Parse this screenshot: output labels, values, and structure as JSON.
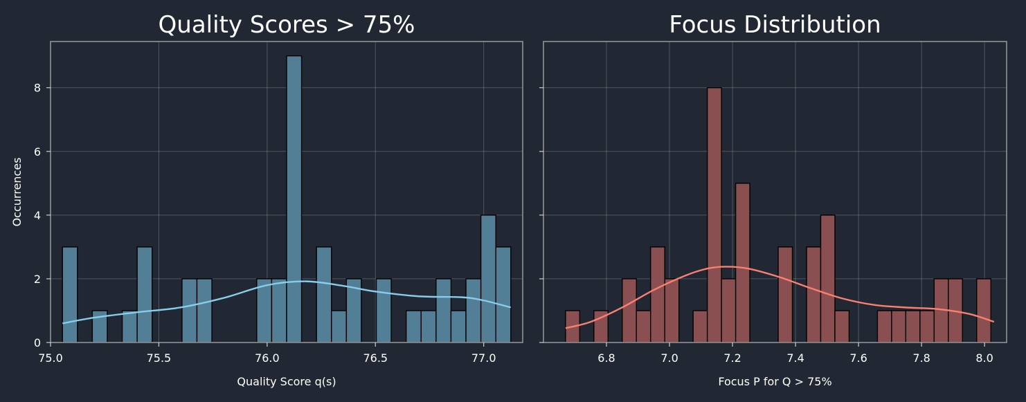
{
  "chart_data": [
    {
      "type": "histogram",
      "title": "Quality Scores > 75%",
      "xlabel": "Quality Score q(s)",
      "ylabel": "Occurrences",
      "color": "#87CEEB",
      "bar_color": "#527e96",
      "xlim": [
        75.0,
        77.18
      ],
      "ylim": [
        0,
        9.45
      ],
      "xticks": [
        "75.0",
        "75.5",
        "76.0",
        "76.5",
        "77.0"
      ],
      "xtick_values": [
        75.0,
        75.5,
        76.0,
        76.5,
        77.0
      ],
      "yticks": [
        "0",
        "2",
        "4",
        "6",
        "8"
      ],
      "ytick_values": [
        0,
        2,
        4,
        6,
        8
      ],
      "grid": true,
      "bins": [
        {
          "x0": 75.055,
          "x1": 75.124,
          "count": 3
        },
        {
          "x0": 75.124,
          "x1": 75.193,
          "count": 0
        },
        {
          "x0": 75.193,
          "x1": 75.262,
          "count": 1
        },
        {
          "x0": 75.262,
          "x1": 75.331,
          "count": 0
        },
        {
          "x0": 75.331,
          "x1": 75.4,
          "count": 1
        },
        {
          "x0": 75.4,
          "x1": 75.469,
          "count": 3
        },
        {
          "x0": 75.469,
          "x1": 75.538,
          "count": 0
        },
        {
          "x0": 75.538,
          "x1": 75.607,
          "count": 0
        },
        {
          "x0": 75.607,
          "x1": 75.676,
          "count": 2
        },
        {
          "x0": 75.676,
          "x1": 75.745,
          "count": 2
        },
        {
          "x0": 75.745,
          "x1": 75.814,
          "count": 0
        },
        {
          "x0": 75.814,
          "x1": 75.883,
          "count": 0
        },
        {
          "x0": 75.883,
          "x1": 75.952,
          "count": 0
        },
        {
          "x0": 75.952,
          "x1": 76.021,
          "count": 2
        },
        {
          "x0": 76.021,
          "x1": 76.09,
          "count": 2
        },
        {
          "x0": 76.09,
          "x1": 76.159,
          "count": 9
        },
        {
          "x0": 76.159,
          "x1": 76.228,
          "count": 0
        },
        {
          "x0": 76.228,
          "x1": 76.297,
          "count": 3
        },
        {
          "x0": 76.297,
          "x1": 76.366,
          "count": 1
        },
        {
          "x0": 76.366,
          "x1": 76.435,
          "count": 2
        },
        {
          "x0": 76.435,
          "x1": 76.504,
          "count": 0
        },
        {
          "x0": 76.504,
          "x1": 76.573,
          "count": 2
        },
        {
          "x0": 76.573,
          "x1": 76.642,
          "count": 0
        },
        {
          "x0": 76.642,
          "x1": 76.711,
          "count": 1
        },
        {
          "x0": 76.711,
          "x1": 76.78,
          "count": 1
        },
        {
          "x0": 76.78,
          "x1": 76.849,
          "count": 2
        },
        {
          "x0": 76.849,
          "x1": 76.918,
          "count": 1
        },
        {
          "x0": 76.918,
          "x1": 76.987,
          "count": 2
        },
        {
          "x0": 76.987,
          "x1": 77.056,
          "count": 4
        },
        {
          "x0": 77.056,
          "x1": 77.125,
          "count": 3
        }
      ],
      "kde": {
        "x": [
          75.055,
          75.2,
          75.4,
          75.6,
          75.8,
          76.0,
          76.18,
          76.35,
          76.5,
          76.7,
          76.9,
          77.0,
          77.125
        ],
        "y": [
          0.6,
          0.78,
          0.95,
          1.1,
          1.4,
          1.8,
          1.92,
          1.78,
          1.6,
          1.45,
          1.42,
          1.32,
          1.1
        ]
      }
    },
    {
      "type": "histogram",
      "title": "Focus Distribution",
      "xlabel": "Focus P for Q > 75%",
      "ylabel": "",
      "color": "#FA8072",
      "bar_color": "#8a4f50",
      "xlim": [
        6.6,
        8.07
      ],
      "ylim": [
        0,
        9.45
      ],
      "xticks": [
        "6.8",
        "7.0",
        "7.2",
        "7.4",
        "7.6",
        "7.8",
        "8.0"
      ],
      "xtick_values": [
        6.8,
        7.0,
        7.2,
        7.4,
        7.6,
        7.8,
        8.0
      ],
      "yticks": [
        "",
        "",
        "",
        "",
        ""
      ],
      "ytick_values": [
        0,
        2,
        4,
        6,
        8
      ],
      "grid": true,
      "bins": [
        {
          "x0": 6.67,
          "x1": 6.715,
          "count": 1
        },
        {
          "x0": 6.715,
          "x1": 6.76,
          "count": 0
        },
        {
          "x0": 6.76,
          "x1": 6.805,
          "count": 1
        },
        {
          "x0": 6.805,
          "x1": 6.85,
          "count": 0
        },
        {
          "x0": 6.85,
          "x1": 6.895,
          "count": 2
        },
        {
          "x0": 6.895,
          "x1": 6.94,
          "count": 1
        },
        {
          "x0": 6.94,
          "x1": 6.985,
          "count": 3
        },
        {
          "x0": 6.985,
          "x1": 7.03,
          "count": 2
        },
        {
          "x0": 7.03,
          "x1": 7.075,
          "count": 0
        },
        {
          "x0": 7.075,
          "x1": 7.12,
          "count": 1
        },
        {
          "x0": 7.12,
          "x1": 7.165,
          "count": 8
        },
        {
          "x0": 7.165,
          "x1": 7.21,
          "count": 2
        },
        {
          "x0": 7.21,
          "x1": 7.255,
          "count": 5
        },
        {
          "x0": 7.255,
          "x1": 7.3,
          "count": 0
        },
        {
          "x0": 7.3,
          "x1": 7.345,
          "count": 0
        },
        {
          "x0": 7.345,
          "x1": 7.39,
          "count": 3
        },
        {
          "x0": 7.39,
          "x1": 7.435,
          "count": 0
        },
        {
          "x0": 7.435,
          "x1": 7.48,
          "count": 3
        },
        {
          "x0": 7.48,
          "x1": 7.525,
          "count": 4
        },
        {
          "x0": 7.525,
          "x1": 7.57,
          "count": 1
        },
        {
          "x0": 7.57,
          "x1": 7.615,
          "count": 0
        },
        {
          "x0": 7.615,
          "x1": 7.66,
          "count": 0
        },
        {
          "x0": 7.66,
          "x1": 7.705,
          "count": 1
        },
        {
          "x0": 7.705,
          "x1": 7.75,
          "count": 1
        },
        {
          "x0": 7.75,
          "x1": 7.795,
          "count": 1
        },
        {
          "x0": 7.795,
          "x1": 7.84,
          "count": 1
        },
        {
          "x0": 7.84,
          "x1": 7.885,
          "count": 2
        },
        {
          "x0": 7.885,
          "x1": 7.93,
          "count": 2
        },
        {
          "x0": 7.93,
          "x1": 7.975,
          "count": 0
        },
        {
          "x0": 7.975,
          "x1": 8.02,
          "count": 2
        }
      ],
      "kde": {
        "x": [
          6.67,
          6.75,
          6.85,
          6.95,
          7.05,
          7.12,
          7.18,
          7.25,
          7.35,
          7.45,
          7.55,
          7.65,
          7.75,
          7.85,
          7.95,
          8.03
        ],
        "y": [
          0.45,
          0.65,
          1.1,
          1.65,
          2.1,
          2.32,
          2.38,
          2.32,
          2.05,
          1.7,
          1.38,
          1.18,
          1.1,
          1.05,
          0.9,
          0.65
        ]
      }
    }
  ]
}
